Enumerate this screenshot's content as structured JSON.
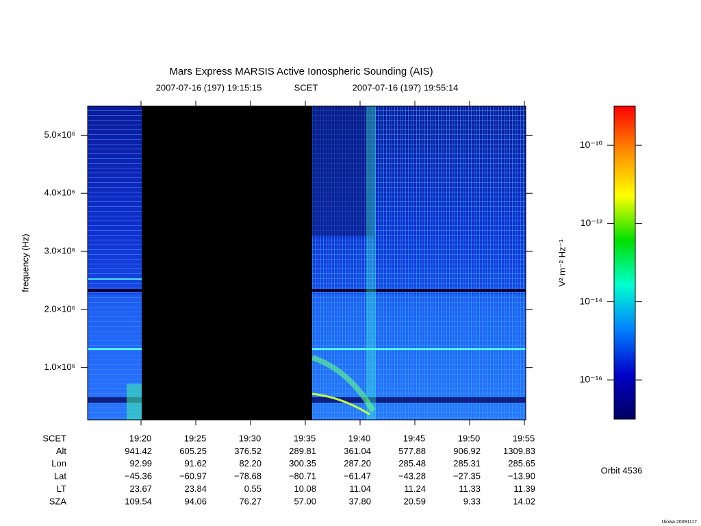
{
  "chart_data": {
    "type": "spectrogram",
    "title": "Mars Express MARSIS Active Ionospheric Sounding (AIS)",
    "start_time": "2007-07-16 (197) 19:15:15",
    "time_system": "SCET",
    "end_time": "2007-07-16 (197) 19:55:14",
    "ylabel": "frequency (Hz)",
    "ylim": [
      100000,
      5500000
    ],
    "yticks": [
      {
        "value": 1000000,
        "label": "1.0×10⁶"
      },
      {
        "value": 2000000,
        "label": "2.0×10⁶"
      },
      {
        "value": 3000000,
        "label": "3.0×10⁶"
      },
      {
        "value": 4000000,
        "label": "4.0×10⁶"
      },
      {
        "value": 5000000,
        "label": "5.0×10⁶"
      }
    ],
    "ephemeris": [
      {
        "name": "SCET",
        "values": [
          "19:20",
          "19:25",
          "19:30",
          "19:35",
          "19:40",
          "19:45",
          "19:50",
          "19:55"
        ]
      },
      {
        "name": "Alt",
        "values": [
          "941.42",
          "605.25",
          "376.52",
          "289.81",
          "361.04",
          "577.88",
          "906.92",
          "1309.83"
        ]
      },
      {
        "name": "Lon",
        "values": [
          "92.99",
          "91.62",
          "82.20",
          "300.35",
          "287.20",
          "285.48",
          "285.31",
          "285.65"
        ]
      },
      {
        "name": "Lat",
        "values": [
          "−45.36",
          "−60.97",
          "−78.68",
          "−80.71",
          "−61.47",
          "−43.28",
          "−27.35",
          "−13.90"
        ]
      },
      {
        "name": "LT",
        "values": [
          "23.67",
          "23.84",
          "0.55",
          "10.08",
          "11.04",
          "11.24",
          "11.33",
          "11.39"
        ]
      },
      {
        "name": "SZA",
        "values": [
          "109.54",
          "94.06",
          "76.27",
          "57.00",
          "37.80",
          "20.59",
          "9.33",
          "14.02"
        ]
      }
    ],
    "colorbar": {
      "label": "V² m⁻² Hz⁻¹",
      "scale": "log",
      "clim": [
        1e-17,
        1e-09
      ],
      "ticks": [
        {
          "value": 1e-16,
          "label": "10⁻¹⁶"
        },
        {
          "value": 1e-14,
          "label": "10⁻¹⁴"
        },
        {
          "value": 1e-12,
          "label": "10⁻¹²"
        },
        {
          "value": 1e-10,
          "label": "10⁻¹⁰"
        }
      ],
      "colors": [
        "#ff0000",
        "#ff8c00",
        "#ffff00",
        "#00e000",
        "#00ffd0",
        "#0080ff",
        "#0000c8",
        "#000060"
      ]
    },
    "orbit": "Orbit 4536",
    "credit": "Uiowa 20091117"
  }
}
